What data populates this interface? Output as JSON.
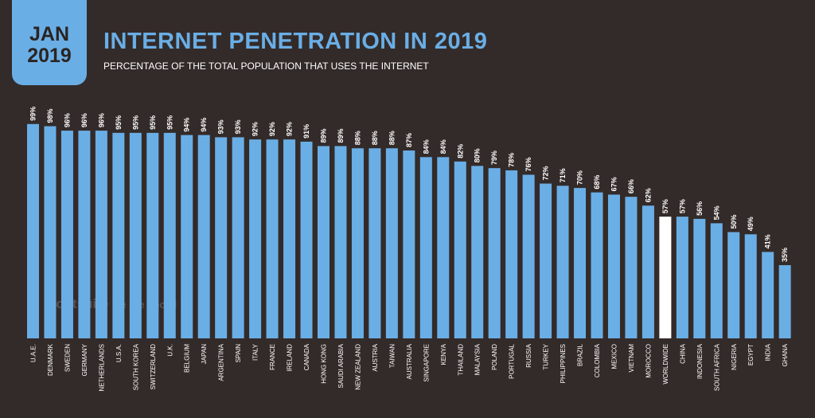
{
  "header": {
    "month": "JAN",
    "year": "2019"
  },
  "watermark": {
    "left": "Hootsuite",
    "right": "we are social"
  },
  "chart_data": {
    "type": "bar",
    "title": "INTERNET PENETRATION IN 2019",
    "subtitle": "PERCENTAGE OF THE TOTAL POPULATION THAT USES THE INTERNET",
    "unit": "%",
    "categories": [
      "U.A.E.",
      "DENMARK",
      "SWEDEN",
      "GERMANY",
      "NETHERLANDS",
      "U.S.A.",
      "SOUTH KOREA",
      "SWITZERLAND",
      "U.K.",
      "BELGIUM",
      "JAPAN",
      "ARGENTINA",
      "SPAIN",
      "ITALY",
      "FRANCE",
      "IRELAND",
      "CANADA",
      "HONG KONG",
      "SAUDI ARABIA",
      "NEW ZEALAND",
      "AUSTRIA",
      "TAIWAN",
      "AUSTRALIA",
      "SINGAPORE",
      "KENYA",
      "THAILAND",
      "MALAYSIA",
      "POLAND",
      "PORTUGAL",
      "RUSSIA",
      "TURKEY",
      "PHILIPPINES",
      "BRAZIL",
      "COLOMBIA",
      "MEXICO",
      "VIETNAM",
      "MOROCCO",
      "WORLDWIDE",
      "CHINA",
      "INDONESIA",
      "SOUTH AFRICA",
      "NIGERIA",
      "EGYPT",
      "INDIA",
      "GHANA"
    ],
    "values": [
      99,
      98,
      96,
      96,
      96,
      95,
      95,
      95,
      95,
      94,
      94,
      93,
      93,
      92,
      92,
      92,
      91,
      89,
      89,
      88,
      88,
      88,
      87,
      84,
      84,
      82,
      80,
      79,
      78,
      76,
      72,
      71,
      70,
      68,
      67,
      66,
      62,
      57,
      57,
      56,
      54,
      50,
      49,
      41,
      35
    ],
    "highlight": "WORLDWIDE",
    "colors": {
      "bar": "#6aaee6",
      "highlight": "#ffffff",
      "background": "#332b29"
    },
    "grid": false,
    "legend": "none"
  }
}
